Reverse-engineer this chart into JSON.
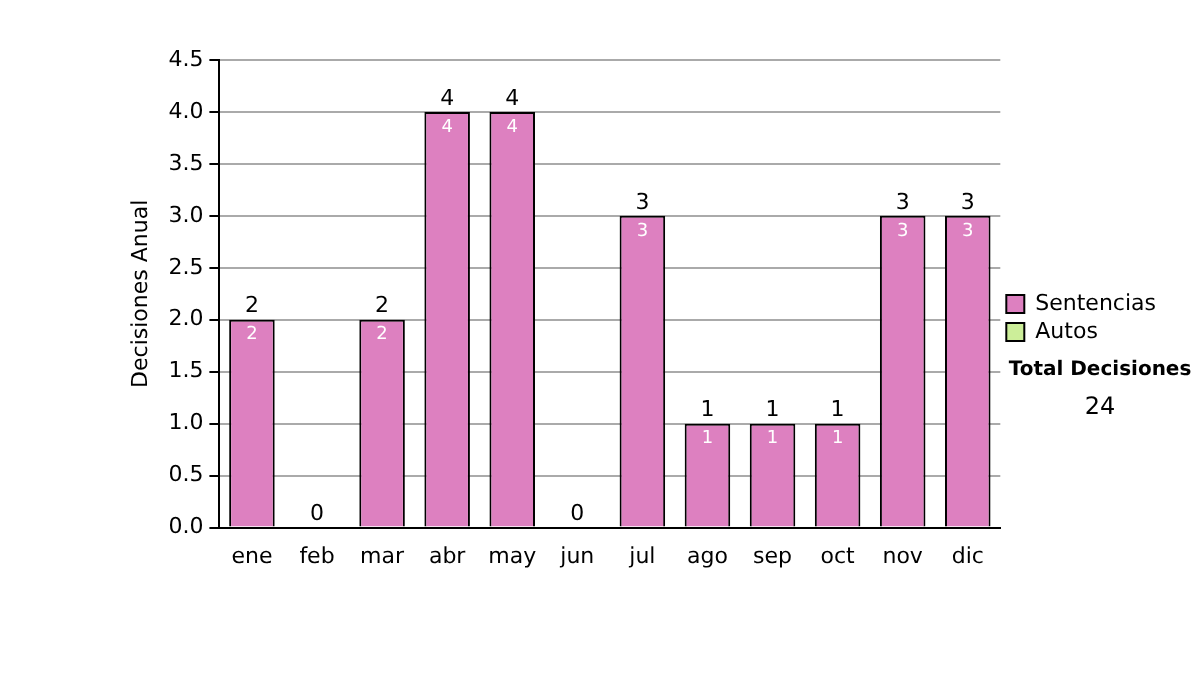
{
  "chart_data": {
    "type": "bar",
    "ylabel": "Decisiones Anual",
    "categories": [
      "ene",
      "feb",
      "mar",
      "abr",
      "may",
      "jun",
      "jul",
      "ago",
      "sep",
      "oct",
      "nov",
      "dic"
    ],
    "series": [
      {
        "name": "Sentencias",
        "color": "#dd80c0",
        "values": [
          2,
          0,
          2,
          4,
          4,
          0,
          3,
          1,
          1,
          1,
          3,
          3
        ],
        "value_labels": [
          "2",
          null,
          "2",
          "4",
          "4",
          null,
          "3",
          "1",
          "1",
          "1",
          "3",
          "3"
        ]
      },
      {
        "name": "Autos",
        "color": "#ccee99",
        "values": [
          0,
          0,
          0,
          0,
          0,
          0,
          0,
          0,
          0,
          0,
          0,
          0
        ]
      }
    ],
    "stacked": true,
    "totals": [
      "2",
      "0",
      "2",
      "4",
      "4",
      "0",
      "3",
      "1",
      "1",
      "1",
      "3",
      "3"
    ],
    "ylim": [
      0,
      4.5
    ],
    "yticks": [
      {
        "value": 0,
        "label": "0.0"
      },
      {
        "value": 0.5,
        "label": "0.5"
      },
      {
        "value": 1,
        "label": "1.0"
      },
      {
        "value": 1.5,
        "label": "1.5"
      },
      {
        "value": 2,
        "label": "2.0"
      },
      {
        "value": 2.5,
        "label": "2.5"
      },
      {
        "value": 3,
        "label": "3.0"
      },
      {
        "value": 3.5,
        "label": "3.5"
      },
      {
        "value": 4,
        "label": "4.0"
      },
      {
        "value": 4.5,
        "label": "4.5"
      }
    ],
    "grid": "y",
    "legend": "right",
    "annotations": [
      "Total Decisiones",
      "24"
    ]
  }
}
